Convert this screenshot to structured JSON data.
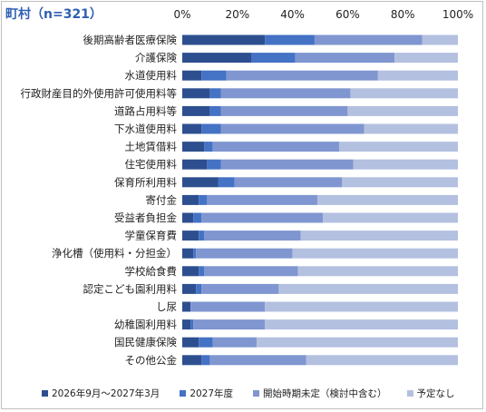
{
  "chart_data": {
    "type": "bar",
    "orientation": "horizontal",
    "stacked": true,
    "title": "町村（n=321）",
    "categories": [
      "後期高齢者医療保険",
      "介護保険",
      "水道使用料",
      "行政財産目的外使用許可使用料等",
      "道路占用料等",
      "下水道使用料",
      "土地賃借料",
      "住宅使用料",
      "保育所利用料",
      "寄付金",
      "受益者負担金",
      "学童保育費",
      "浄化槽（使用料・分担金）",
      "学校給食費",
      "認定こども園利用料",
      "し尿",
      "幼稚園利用料",
      "国民健康保険",
      "その他公金"
    ],
    "series": [
      {
        "name": "2026年9月～2027年3月",
        "color": "#2e4f8f",
        "values": [
          30,
          25,
          7,
          10,
          10,
          7,
          8,
          9,
          13,
          6,
          4,
          6,
          4,
          6,
          5,
          3,
          3,
          6,
          7
        ]
      },
      {
        "name": "2027年度",
        "color": "#4472c4",
        "values": [
          18,
          16,
          9,
          4,
          4,
          7,
          3,
          5,
          6,
          3,
          3,
          2,
          1,
          2,
          2,
          0,
          1,
          5,
          3
        ]
      },
      {
        "name": "開始時期未定（検討中含む）",
        "color": "#7f96d0",
        "values": [
          39,
          36,
          55,
          47,
          46,
          52,
          46,
          48,
          39,
          40,
          44,
          35,
          35,
          34,
          28,
          27,
          26,
          16,
          35
        ]
      },
      {
        "name": "予定なし",
        "color": "#b4c0e0",
        "values": [
          13,
          23,
          29,
          39,
          40,
          34,
          43,
          38,
          42,
          51,
          49,
          57,
          60,
          58,
          65,
          70,
          70,
          73,
          55
        ]
      }
    ],
    "xlim": [
      0,
      100
    ],
    "xticks": [
      "0%",
      "20%",
      "40%",
      "60%",
      "80%",
      "100%"
    ],
    "legend_position": "bottom",
    "grid": false
  }
}
